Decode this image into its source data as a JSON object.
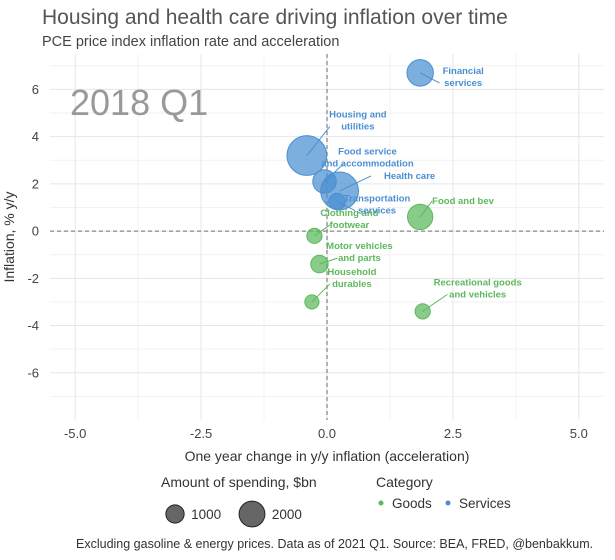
{
  "chart_data": {
    "type": "scatter",
    "title": "Housing and health care driving inflation over time",
    "subtitle": "PCE price index inflation rate and acceleration",
    "xlabel": "One year change in y/y inflation (acceleration)",
    "ylabel": "Inflation, % y/y",
    "xlim": [
      -5.5,
      5.5
    ],
    "ylim": [
      -8,
      7.5
    ],
    "xticks": [
      -5,
      -2.5,
      0,
      2.5,
      5
    ],
    "xtick_labels": [
      "-5.0",
      "-2.5",
      "0.0",
      "2.5",
      "5.0"
    ],
    "yticks": [
      -6,
      -4,
      -2,
      0,
      2,
      4,
      6
    ],
    "ytick_labels": [
      "-6",
      "-4",
      "-2",
      "0",
      "2",
      "4",
      "6"
    ],
    "period_label": "2018 Q1",
    "grid": true,
    "colors": {
      "Goods": "#5cb85c",
      "Services": "#4a8fd1"
    },
    "series": [
      {
        "name": "Goods",
        "points": [
          {
            "label": "Food and bev",
            "x": 1.85,
            "y": 0.6,
            "size": 1050
          },
          {
            "label": "Clothing and footwear",
            "x": -0.25,
            "y": -0.2,
            "size": 380
          },
          {
            "label": "Motor vehicles and parts",
            "x": -0.15,
            "y": -1.4,
            "size": 500
          },
          {
            "label": "Household durables",
            "x": -0.3,
            "y": -3.0,
            "size": 330
          },
          {
            "label": "Recreational goods and vehicles",
            "x": 1.9,
            "y": -3.4,
            "size": 380
          }
        ]
      },
      {
        "name": "Services",
        "points": [
          {
            "label": "Financial services",
            "x": 1.85,
            "y": 6.7,
            "size": 1150
          },
          {
            "label": "Housing and utilities",
            "x": -0.4,
            "y": 3.2,
            "size": 2600
          },
          {
            "label": "Food service and accommodation",
            "x": -0.05,
            "y": 2.1,
            "size": 900
          },
          {
            "label": "Health care",
            "x": 0.25,
            "y": 1.7,
            "size": 2350
          },
          {
            "label": "Transportation services",
            "x": 0.2,
            "y": 1.25,
            "size": 450
          }
        ]
      }
    ],
    "legend": {
      "size_title": "Amount of spending, $bn",
      "size_values": [
        1000,
        2000
      ],
      "size_labels": [
        "1000",
        "2000"
      ],
      "color_title": "Category",
      "color_entries": [
        "Goods",
        "Services"
      ]
    },
    "caption": "Excluding gasoline & energy prices. Data as of 2021 Q1. Source: BEA, FRED, @benbakkum."
  }
}
